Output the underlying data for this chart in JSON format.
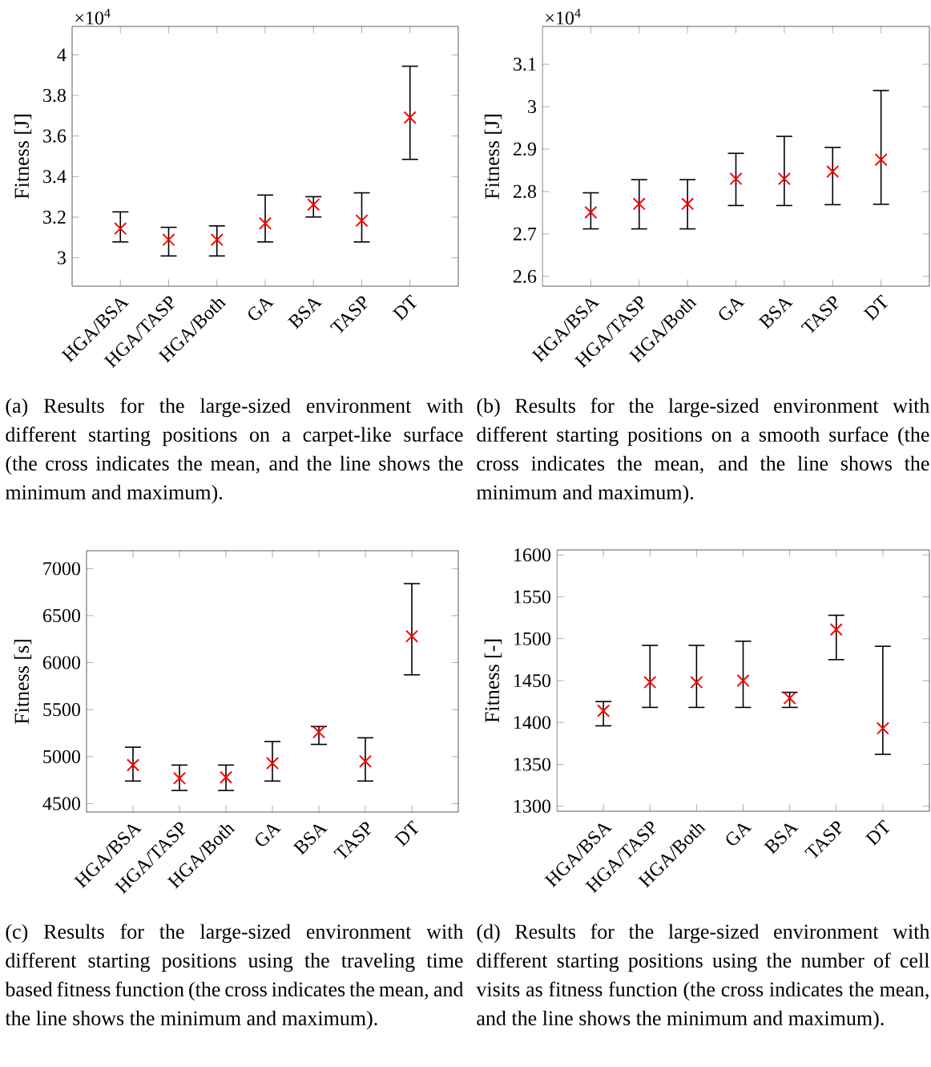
{
  "chart_data": [
    {
      "type": "scatter",
      "categories": [
        "HGA/BSA",
        "HGA/TASP",
        "HGA/Both",
        "GA",
        "BSA",
        "TASP",
        "DT"
      ],
      "color": "#ff0000",
      "marker": "cross",
      "ylabel": "Fitness [J]",
      "values": [
        3.144,
        3.089,
        3.089,
        3.17,
        3.262,
        3.183,
        3.691
      ],
      "errors": [
        [
          3.078,
          3.226
        ],
        [
          3.009,
          3.15
        ],
        [
          3.009,
          3.157
        ],
        [
          3.078,
          3.309
        ],
        [
          3.201,
          3.301
        ],
        [
          3.078,
          3.32
        ],
        [
          3.485,
          3.944
        ]
      ],
      "ylim": [
        2.86,
        4.14
      ],
      "yticks": [
        3,
        3.2,
        3.4,
        3.6,
        3.8,
        4
      ],
      "annotations": [
        "×10$^{4}$",
        "(a) Results for the large-sized environment with different starting positions on a carpet-like surface (the cross indicates the mean, and the line shows the minimum and maximum)."
      ]
    },
    {
      "type": "scatter",
      "categories": [
        "HGA/BSA",
        "HGA/TASP",
        "HGA/Both",
        "GA",
        "BSA",
        "TASP",
        "DT"
      ],
      "color": "#ff0000",
      "marker": "cross",
      "ylabel": "Fitness [J]",
      "values": [
        2.751,
        2.771,
        2.771,
        2.83,
        2.83,
        2.847,
        2.875
      ],
      "errors": [
        [
          2.712,
          2.797
        ],
        [
          2.712,
          2.828
        ],
        [
          2.712,
          2.828
        ],
        [
          2.767,
          2.89
        ],
        [
          2.767,
          2.93
        ],
        [
          2.769,
          2.904
        ],
        [
          2.77,
          3.038
        ]
      ],
      "ylim": [
        2.577,
        3.189
      ],
      "yticks": [
        2.6,
        2.7,
        2.8,
        2.9,
        3,
        3.1
      ],
      "annotations": [
        "×10$^{4}$",
        "(b) Results for the large-sized environment with different starting positions on a smooth surface (the cross indicates the mean, and the line shows the minimum and maximum)."
      ]
    },
    {
      "type": "scatter",
      "categories": [
        "HGA/BSA",
        "HGA/TASP",
        "HGA/Both",
        "GA",
        "BSA",
        "TASP",
        "DT"
      ],
      "color": "#ff0000",
      "marker": "cross",
      "ylabel": "Fitness [s]",
      "values": [
        4910,
        4770,
        4780,
        4930,
        5260,
        4950,
        6280
      ],
      "errors": [
        [
          4740,
          5100
        ],
        [
          4640,
          4910
        ],
        [
          4640,
          4910
        ],
        [
          4740,
          5160
        ],
        [
          5130,
          5320
        ],
        [
          4740,
          5200
        ],
        [
          5870,
          6840
        ]
      ],
      "ylim": [
        4410,
        7190
      ],
      "yticks": [
        4500,
        5000,
        5500,
        6000,
        6500,
        7000
      ],
      "annotations": [
        "(c) Results for the large-sized environment with different starting positions using the traveling time based fitness function (the cross indicates the mean, and the line shows the minimum and maximum)."
      ]
    },
    {
      "type": "scatter",
      "categories": [
        "HGA/BSA",
        "HGA/TASP",
        "HGA/Both",
        "GA",
        "BSA",
        "TASP",
        "DT"
      ],
      "color": "#ff0000",
      "marker": "cross",
      "ylabel": "Fitness [-]",
      "values": [
        1414,
        1448,
        1448,
        1450,
        1429,
        1511,
        1393
      ],
      "errors": [
        [
          1396,
          1425
        ],
        [
          1418,
          1492
        ],
        [
          1418,
          1492
        ],
        [
          1418,
          1497
        ],
        [
          1418,
          1436
        ],
        [
          1475,
          1528
        ],
        [
          1362,
          1491
        ]
      ],
      "ylim": [
        1294,
        1606
      ],
      "yticks": [
        1300,
        1350,
        1400,
        1450,
        1500,
        1550,
        1600
      ],
      "annotations": [
        "(d) Results for the large-sized environment with different starting positions using the number of cell visits as fitness function (the cross indicates the mean, and the line shows the minimum and maximum)."
      ]
    }
  ]
}
